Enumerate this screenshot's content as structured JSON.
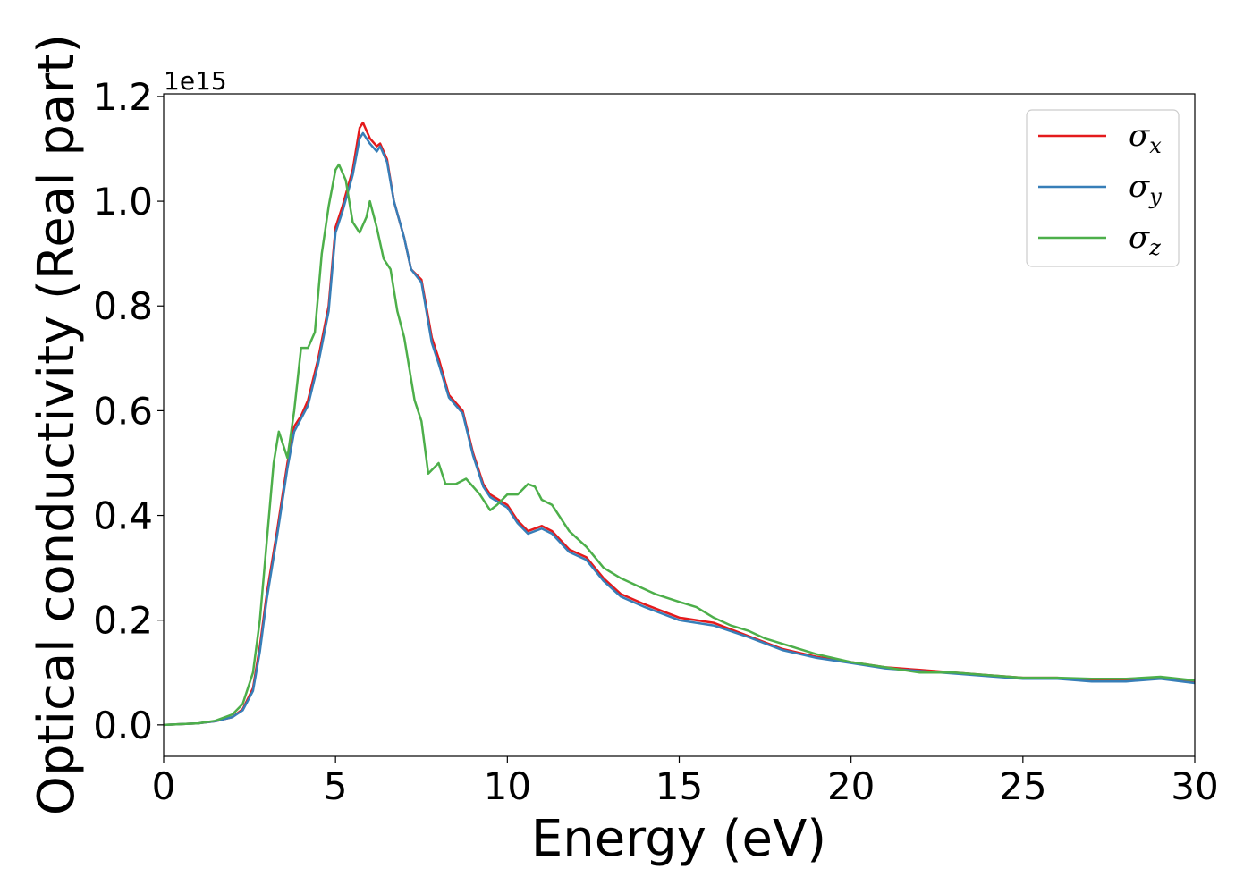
{
  "chart_data": {
    "type": "line",
    "xlabel": "Energy (eV)",
    "ylabel": "Optical conductivity (Real part)",
    "y_offset_label": "1e15",
    "xlim": [
      0,
      30
    ],
    "ylim": [
      -0.06,
      1.205
    ],
    "x_ticks": [
      0,
      5,
      10,
      15,
      20,
      25,
      30
    ],
    "y_ticks": [
      0.0,
      0.2,
      0.4,
      0.6,
      0.8,
      1.0,
      1.2
    ],
    "x_tick_labels": [
      "0",
      "5",
      "10",
      "15",
      "20",
      "25",
      "30"
    ],
    "y_tick_labels": [
      "0.0",
      "0.2",
      "0.4",
      "0.6",
      "0.8",
      "1.0",
      "1.2"
    ],
    "grid": false,
    "legend_position": "top-right",
    "series": [
      {
        "name": "σ",
        "subscript": "x",
        "color": "#e41a1c",
        "x": [
          0,
          1,
          1.5,
          2,
          2.3,
          2.6,
          2.8,
          3,
          3.3,
          3.6,
          3.8,
          4,
          4.2,
          4.5,
          4.8,
          5,
          5.2,
          5.5,
          5.7,
          5.8,
          6,
          6.2,
          6.3,
          6.5,
          6.7,
          7,
          7.2,
          7.5,
          7.8,
          8,
          8.3,
          8.7,
          9,
          9.3,
          9.5,
          10,
          10.3,
          10.6,
          11,
          11.3,
          11.8,
          12.3,
          12.8,
          13.3,
          14,
          15,
          16,
          17,
          18,
          19,
          20,
          21,
          22,
          23,
          24,
          25,
          26,
          27,
          28,
          29,
          30
        ],
        "y": [
          0,
          0.003,
          0.007,
          0.015,
          0.03,
          0.07,
          0.15,
          0.25,
          0.37,
          0.5,
          0.57,
          0.59,
          0.62,
          0.7,
          0.8,
          0.95,
          0.99,
          1.06,
          1.14,
          1.15,
          1.12,
          1.105,
          1.11,
          1.08,
          1.0,
          0.93,
          0.87,
          0.85,
          0.74,
          0.7,
          0.63,
          0.6,
          0.52,
          0.46,
          0.44,
          0.42,
          0.39,
          0.37,
          0.38,
          0.37,
          0.335,
          0.32,
          0.28,
          0.25,
          0.23,
          0.205,
          0.195,
          0.17,
          0.145,
          0.13,
          0.12,
          0.11,
          0.105,
          0.1,
          0.095,
          0.09,
          0.09,
          0.085,
          0.085,
          0.09,
          0.082
        ]
      },
      {
        "name": "σ",
        "subscript": "y",
        "color": "#377eb8",
        "x": [
          0,
          1,
          1.5,
          2,
          2.3,
          2.6,
          2.8,
          3,
          3.3,
          3.6,
          3.8,
          4,
          4.2,
          4.5,
          4.8,
          5,
          5.2,
          5.5,
          5.7,
          5.8,
          6,
          6.2,
          6.3,
          6.5,
          6.7,
          7,
          7.2,
          7.5,
          7.8,
          8,
          8.3,
          8.7,
          9,
          9.3,
          9.5,
          10,
          10.3,
          10.6,
          11,
          11.3,
          11.8,
          12.3,
          12.8,
          13.3,
          14,
          15,
          16,
          17,
          18,
          19,
          20,
          21,
          22,
          23,
          24,
          25,
          26,
          27,
          28,
          29,
          30
        ],
        "y": [
          0,
          0.003,
          0.007,
          0.015,
          0.028,
          0.065,
          0.14,
          0.24,
          0.36,
          0.49,
          0.56,
          0.585,
          0.61,
          0.69,
          0.79,
          0.94,
          0.98,
          1.05,
          1.12,
          1.13,
          1.11,
          1.095,
          1.105,
          1.075,
          1.0,
          0.93,
          0.87,
          0.845,
          0.73,
          0.69,
          0.625,
          0.595,
          0.515,
          0.455,
          0.435,
          0.415,
          0.385,
          0.365,
          0.375,
          0.365,
          0.33,
          0.315,
          0.275,
          0.245,
          0.225,
          0.2,
          0.19,
          0.168,
          0.143,
          0.128,
          0.118,
          0.108,
          0.103,
          0.098,
          0.093,
          0.088,
          0.088,
          0.083,
          0.083,
          0.088,
          0.08
        ]
      },
      {
        "name": "σ",
        "subscript": "z",
        "color": "#4daf4a",
        "x": [
          0,
          1,
          1.5,
          2,
          2.3,
          2.6,
          2.8,
          3,
          3.2,
          3.35,
          3.6,
          3.8,
          4,
          4.2,
          4.4,
          4.6,
          4.8,
          5,
          5.1,
          5.3,
          5.5,
          5.7,
          5.9,
          6,
          6.2,
          6.4,
          6.6,
          6.8,
          7,
          7.3,
          7.5,
          7.7,
          8,
          8.2,
          8.5,
          8.8,
          9.2,
          9.5,
          9.7,
          10,
          10.3,
          10.6,
          10.8,
          11,
          11.3,
          11.8,
          12.3,
          12.8,
          13.3,
          13.8,
          14.3,
          15,
          15.5,
          16,
          16.5,
          17,
          17.5,
          18,
          19,
          20,
          21,
          22,
          23,
          24,
          25,
          26,
          27,
          28,
          29,
          30
        ],
        "y": [
          0,
          0.003,
          0.008,
          0.02,
          0.04,
          0.1,
          0.2,
          0.35,
          0.5,
          0.56,
          0.51,
          0.6,
          0.72,
          0.72,
          0.75,
          0.9,
          0.99,
          1.06,
          1.07,
          1.04,
          0.96,
          0.94,
          0.97,
          1.0,
          0.95,
          0.89,
          0.87,
          0.79,
          0.74,
          0.62,
          0.58,
          0.48,
          0.5,
          0.46,
          0.46,
          0.47,
          0.44,
          0.41,
          0.42,
          0.44,
          0.44,
          0.46,
          0.455,
          0.43,
          0.42,
          0.37,
          0.34,
          0.3,
          0.28,
          0.265,
          0.25,
          0.235,
          0.225,
          0.205,
          0.19,
          0.18,
          0.165,
          0.155,
          0.135,
          0.12,
          0.11,
          0.1,
          0.1,
          0.095,
          0.09,
          0.09,
          0.088,
          0.088,
          0.092,
          0.085
        ]
      }
    ]
  }
}
